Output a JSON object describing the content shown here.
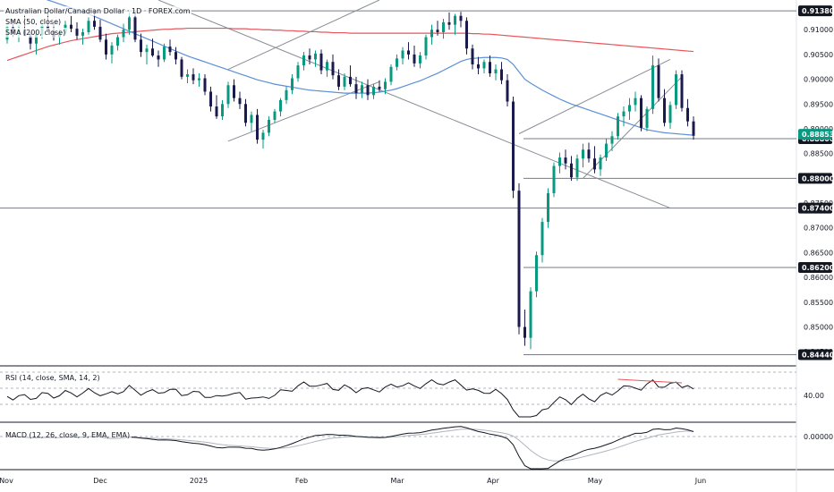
{
  "legend": {
    "title": "Australian Dollar/Canadian Dollar · 1D · FOREX.com",
    "sma50": "SMA (50, close)",
    "sma200": "SMA (200, close)",
    "rsi": "RSI (14, close, SMA, 14, 2)",
    "macd": "MACD (12, 26, close, 9, EMA, EMA)"
  },
  "colors": {
    "up": "#089981",
    "down": "#1a1a4e",
    "sma50": "#5b8fd6",
    "sma200": "#e8545a",
    "level": "#787b86",
    "tag_bg": "#131722",
    "current_tag_bg": "#089981",
    "rsi_line": "#131722",
    "macd_line": "#131722",
    "signal_line": "#b2b5be",
    "rsi_trend": "#e8545a"
  },
  "chart_data": {
    "type": "candlestick",
    "price_axis_ticks": [
      "0.91000",
      "0.90500",
      "0.90000",
      "0.89500",
      "0.89000",
      "0.88500",
      "0.88000",
      "0.87500",
      "0.87000",
      "0.86500",
      "0.86000",
      "0.85500",
      "0.85000",
      "0.84500"
    ],
    "price_levels": [
      "0.91380",
      "0.88800",
      "0.88000",
      "0.87400",
      "0.86200",
      "0.84440"
    ],
    "current_price": "0.88853",
    "x_labels": [
      "Nov",
      "Dec",
      "2025",
      "Feb",
      "Mar",
      "Apr",
      "May",
      "Jun"
    ],
    "rsi_tick": "40.00",
    "macd_tick": "0.00000",
    "candles": [
      [
        0.908,
        0.9115,
        0.9072,
        0.9105
      ],
      [
        0.9105,
        0.912,
        0.9085,
        0.9092
      ],
      [
        0.9092,
        0.911,
        0.9075,
        0.91
      ],
      [
        0.91,
        0.913,
        0.909,
        0.9088
      ],
      [
        0.9088,
        0.9095,
        0.906,
        0.9072
      ],
      [
        0.9072,
        0.9098,
        0.905,
        0.909
      ],
      [
        0.909,
        0.9122,
        0.9082,
        0.9108
      ],
      [
        0.9108,
        0.9135,
        0.9095,
        0.9098
      ],
      [
        0.9098,
        0.9112,
        0.9078,
        0.9085
      ],
      [
        0.9085,
        0.91,
        0.907,
        0.9094
      ],
      [
        0.9094,
        0.9118,
        0.9088,
        0.911
      ],
      [
        0.911,
        0.9128,
        0.9095,
        0.9102
      ],
      [
        0.9102,
        0.9115,
        0.908,
        0.9088
      ],
      [
        0.9088,
        0.9102,
        0.907,
        0.9095
      ],
      [
        0.9095,
        0.9125,
        0.909,
        0.9118
      ],
      [
        0.9118,
        0.9136,
        0.91,
        0.9106
      ],
      [
        0.9106,
        0.912,
        0.9075,
        0.908
      ],
      [
        0.908,
        0.9092,
        0.904,
        0.905
      ],
      [
        0.905,
        0.9075,
        0.9032,
        0.9068
      ],
      [
        0.9068,
        0.909,
        0.9058,
        0.9085
      ],
      [
        0.9085,
        0.9112,
        0.9075,
        0.91
      ],
      [
        0.91,
        0.9135,
        0.909,
        0.9125
      ],
      [
        0.9125,
        0.9136,
        0.9075,
        0.908
      ],
      [
        0.908,
        0.9092,
        0.9045,
        0.9055
      ],
      [
        0.9055,
        0.907,
        0.903,
        0.9062
      ],
      [
        0.9062,
        0.9082,
        0.9045,
        0.9048
      ],
      [
        0.9048,
        0.9058,
        0.9025,
        0.904
      ],
      [
        0.904,
        0.9072,
        0.9035,
        0.9066
      ],
      [
        0.9066,
        0.908,
        0.9048,
        0.9055
      ],
      [
        0.9055,
        0.9065,
        0.903,
        0.904
      ],
      [
        0.904,
        0.9045,
        0.9,
        0.9005
      ],
      [
        0.9005,
        0.902,
        0.8992,
        0.901
      ],
      [
        0.901,
        0.9022,
        0.899,
        0.8998
      ],
      [
        0.8998,
        0.9012,
        0.8985,
        0.9002
      ],
      [
        0.9002,
        0.901,
        0.8968,
        0.8975
      ],
      [
        0.8975,
        0.8985,
        0.8935,
        0.8945
      ],
      [
        0.8945,
        0.8968,
        0.892,
        0.8925
      ],
      [
        0.8925,
        0.8958,
        0.8918,
        0.895
      ],
      [
        0.895,
        0.8995,
        0.8942,
        0.8988
      ],
      [
        0.8988,
        0.9,
        0.8955,
        0.8962
      ],
      [
        0.8962,
        0.8975,
        0.894,
        0.895
      ],
      [
        0.895,
        0.896,
        0.8905,
        0.8912
      ],
      [
        0.8912,
        0.8935,
        0.8895,
        0.8928
      ],
      [
        0.8928,
        0.894,
        0.887,
        0.8878
      ],
      [
        0.8878,
        0.8898,
        0.886,
        0.8892
      ],
      [
        0.8892,
        0.8925,
        0.8885,
        0.8918
      ],
      [
        0.8918,
        0.894,
        0.8912,
        0.8935
      ],
      [
        0.8935,
        0.8962,
        0.8925,
        0.8958
      ],
      [
        0.8958,
        0.8985,
        0.895,
        0.8978
      ],
      [
        0.8978,
        0.901,
        0.897,
        0.9002
      ],
      [
        0.9002,
        0.9035,
        0.8995,
        0.9028
      ],
      [
        0.9028,
        0.9055,
        0.9018,
        0.9048
      ],
      [
        0.9048,
        0.9062,
        0.903,
        0.904
      ],
      [
        0.904,
        0.9058,
        0.9025,
        0.9052
      ],
      [
        0.9052,
        0.906,
        0.901,
        0.9018
      ],
      [
        0.9018,
        0.904,
        0.9005,
        0.9035
      ],
      [
        0.9035,
        0.905,
        0.9,
        0.9008
      ],
      [
        0.9008,
        0.902,
        0.8978,
        0.8985
      ],
      [
        0.8985,
        0.9012,
        0.8978,
        0.9005
      ],
      [
        0.9005,
        0.9028,
        0.8985,
        0.899
      ],
      [
        0.899,
        0.9005,
        0.896,
        0.8972
      ],
      [
        0.8972,
        0.8995,
        0.8962,
        0.8988
      ],
      [
        0.8988,
        0.9,
        0.8958,
        0.8968
      ],
      [
        0.8968,
        0.899,
        0.896,
        0.8985
      ],
      [
        0.8985,
        0.8998,
        0.8975,
        0.898
      ],
      [
        0.898,
        0.9002,
        0.897,
        0.8995
      ],
      [
        0.8995,
        0.903,
        0.8988,
        0.9025
      ],
      [
        0.9025,
        0.905,
        0.9018,
        0.9042
      ],
      [
        0.9042,
        0.9065,
        0.903,
        0.9058
      ],
      [
        0.9058,
        0.9075,
        0.904,
        0.905
      ],
      [
        0.905,
        0.9068,
        0.9025,
        0.9032
      ],
      [
        0.9032,
        0.9055,
        0.9022,
        0.9048
      ],
      [
        0.9048,
        0.909,
        0.904,
        0.9085
      ],
      [
        0.9085,
        0.911,
        0.907,
        0.91
      ],
      [
        0.91,
        0.9118,
        0.9088,
        0.9095
      ],
      [
        0.9095,
        0.9122,
        0.9082,
        0.9115
      ],
      [
        0.9115,
        0.9135,
        0.91,
        0.911
      ],
      [
        0.911,
        0.9132,
        0.909,
        0.9128
      ],
      [
        0.9128,
        0.9136,
        0.9105,
        0.9118
      ],
      [
        0.9118,
        0.9125,
        0.905,
        0.9062
      ],
      [
        0.9062,
        0.907,
        0.902,
        0.903
      ],
      [
        0.903,
        0.9045,
        0.901,
        0.9022
      ],
      [
        0.9022,
        0.904,
        0.9012,
        0.9035
      ],
      [
        0.9035,
        0.9048,
        0.9005,
        0.9012
      ],
      [
        0.9012,
        0.903,
        0.8998,
        0.902
      ],
      [
        0.902,
        0.9035,
        0.899,
        0.8998
      ],
      [
        0.8998,
        0.901,
        0.8945,
        0.8955
      ],
      [
        0.8955,
        0.8965,
        0.876,
        0.8775
      ],
      [
        0.8775,
        0.879,
        0.8485,
        0.85
      ],
      [
        0.85,
        0.8535,
        0.8462,
        0.8478
      ],
      [
        0.8478,
        0.858,
        0.8455,
        0.8572
      ],
      [
        0.8572,
        0.8652,
        0.856,
        0.8645
      ],
      [
        0.8645,
        0.872,
        0.863,
        0.8712
      ],
      [
        0.8712,
        0.878,
        0.87,
        0.877
      ],
      [
        0.877,
        0.8832,
        0.8762,
        0.8825
      ],
      [
        0.8825,
        0.8852,
        0.881,
        0.8842
      ],
      [
        0.8842,
        0.8858,
        0.8818,
        0.883
      ],
      [
        0.883,
        0.8845,
        0.8795,
        0.8802
      ],
      [
        0.8802,
        0.8848,
        0.8795,
        0.884
      ],
      [
        0.884,
        0.887,
        0.8822,
        0.8858
      ],
      [
        0.8858,
        0.8872,
        0.8832,
        0.884
      ],
      [
        0.884,
        0.8865,
        0.881,
        0.8818
      ],
      [
        0.8818,
        0.8848,
        0.8805,
        0.8842
      ],
      [
        0.8842,
        0.888,
        0.8835,
        0.887
      ],
      [
        0.887,
        0.8895,
        0.8855,
        0.8885
      ],
      [
        0.8885,
        0.8932,
        0.8878,
        0.8925
      ],
      [
        0.8925,
        0.8945,
        0.8905,
        0.8935
      ],
      [
        0.8935,
        0.8962,
        0.8918,
        0.8948
      ],
      [
        0.8948,
        0.8975,
        0.8935,
        0.8962
      ],
      [
        0.8962,
        0.8968,
        0.8895,
        0.8902
      ],
      [
        0.8902,
        0.8945,
        0.8895,
        0.894
      ],
      [
        0.894,
        0.9048,
        0.893,
        0.9028
      ],
      [
        0.9028,
        0.9042,
        0.8955,
        0.8962
      ],
      [
        0.8962,
        0.898,
        0.8905,
        0.8912
      ],
      [
        0.8912,
        0.8955,
        0.89,
        0.8948
      ],
      [
        0.8948,
        0.9018,
        0.894,
        0.901
      ],
      [
        0.901,
        0.9018,
        0.8935,
        0.8942
      ],
      [
        0.8942,
        0.896,
        0.8905,
        0.8915
      ],
      [
        0.8915,
        0.8925,
        0.8878,
        0.8886
      ]
    ],
    "sma50": [
      0.9185,
      0.9182,
      0.9179,
      0.9176,
      0.9172,
      0.9168,
      0.9164,
      0.916,
      0.9156,
      0.9152,
      0.9148,
      0.9144,
      0.914,
      0.9136,
      0.9132,
      0.9127,
      0.9122,
      0.9117,
      0.9112,
      0.9107,
      0.9102,
      0.9097,
      0.9092,
      0.9087,
      0.9082,
      0.9077,
      0.9072,
      0.9067,
      0.9062,
      0.9057,
      0.9052,
      0.9047,
      0.9043,
      0.9039,
      0.9035,
      0.9031,
      0.9027,
      0.9023,
      0.9019,
      0.9015,
      0.9011,
      0.9007,
      0.9003,
      0.8999,
      0.8996,
      0.8993,
      0.899,
      0.8988,
      0.8986,
      0.8984,
      0.8982,
      0.898,
      0.8978,
      0.8977,
      0.8976,
      0.8975,
      0.8974,
      0.8973,
      0.8972,
      0.8972,
      0.8972,
      0.8972,
      0.8972,
      0.8973,
      0.8974,
      0.8976,
      0.8978,
      0.8981,
      0.8985,
      0.8989,
      0.8993,
      0.8997,
      0.9002,
      0.9007,
      0.9012,
      0.9018,
      0.9024,
      0.903,
      0.9036,
      0.904,
      0.9042,
      0.9043,
      0.9044,
      0.9044,
      0.9044,
      0.9043,
      0.904,
      0.903,
      0.9015,
      0.9,
      0.8992,
      0.8985,
      0.8978,
      0.8972,
      0.8966,
      0.896,
      0.8955,
      0.895,
      0.8946,
      0.8942,
      0.8938,
      0.8934,
      0.893,
      0.8926,
      0.8922,
      0.8918,
      0.8914,
      0.891,
      0.8906,
      0.8902,
      0.8898,
      0.8896,
      0.8894,
      0.8892,
      0.8891,
      0.889,
      0.8889,
      0.8888,
      0.8887
    ],
    "sma200": [
      0.9038,
      0.9042,
      0.9046,
      0.905,
      0.9054,
      0.9058,
      0.9062,
      0.9066,
      0.9069,
      0.9072,
      0.9075,
      0.9078,
      0.908,
      0.9082,
      0.9084,
      0.9086,
      0.9088,
      0.909,
      0.9092,
      0.9093,
      0.9094,
      0.9095,
      0.9096,
      0.9097,
      0.9098,
      0.9099,
      0.91,
      0.9101,
      0.9101,
      0.9102,
      0.9102,
      0.9103,
      0.9103,
      0.9103,
      0.9103,
      0.9103,
      0.9103,
      0.9103,
      0.9103,
      0.9102,
      0.9102,
      0.9102,
      0.9101,
      0.9101,
      0.91,
      0.91,
      0.9099,
      0.9099,
      0.9098,
      0.9098,
      0.9097,
      0.9097,
      0.9096,
      0.9096,
      0.9095,
      0.9095,
      0.9094,
      0.9094,
      0.9094,
      0.9093,
      0.9093,
      0.9093,
      0.9093,
      0.9093,
      0.9093,
      0.9093,
      0.9093,
      0.9093,
      0.9093,
      0.9093,
      0.9093,
      0.9093,
      0.9093,
      0.9093,
      0.9093,
      0.9093,
      0.9093,
      0.9093,
      0.9093,
      0.9093,
      0.9092,
      0.9092,
      0.9091,
      0.9091,
      0.909,
      0.9089,
      0.9088,
      0.9087,
      0.9086,
      0.9085,
      0.9084,
      0.9083,
      0.9082,
      0.9081,
      0.908,
      0.9079,
      0.9078,
      0.9077,
      0.9076,
      0.9075,
      0.9074,
      0.9073,
      0.9072,
      0.9071,
      0.907,
      0.9069,
      0.9068,
      0.9067,
      0.9066,
      0.9065,
      0.9064,
      0.9063,
      0.9062,
      0.9061,
      0.906,
      0.9059,
      0.9058,
      0.9057,
      0.9056
    ]
  }
}
